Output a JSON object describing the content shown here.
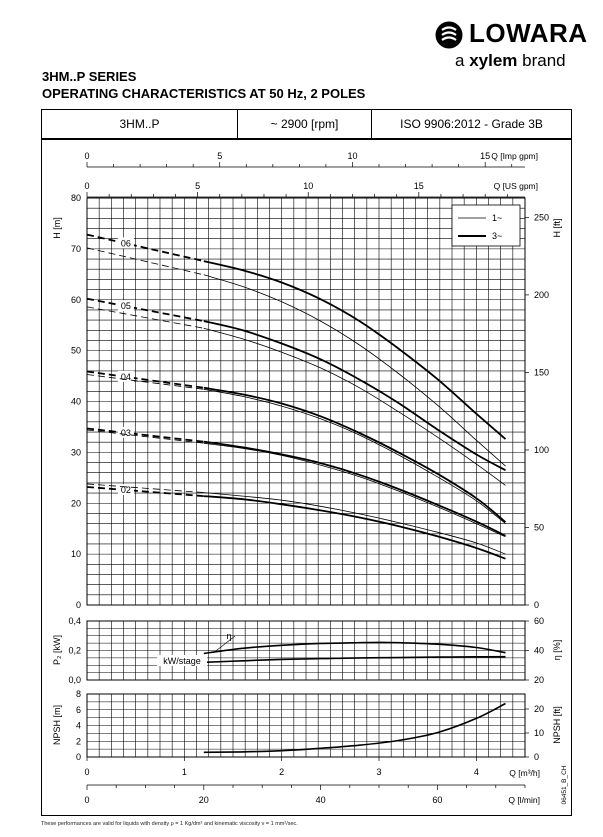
{
  "brand": {
    "name": "LOWARA",
    "tagline_prefix": "a",
    "tagline_brand": "xylem",
    "tagline_suffix": "brand"
  },
  "header": {
    "series": "3HM..P SERIES",
    "title": "OPERATING CHARACTERISTICS AT 50 Hz, 2 POLES"
  },
  "info_box": {
    "model": "3HM..P",
    "speed": "~ 2900 [rpm]",
    "standard": "ISO 9906:2012 - Grade 3B"
  },
  "footnote": "These performances are valid for liquids with density ρ = 1 Kg/dm³ and kinematic viscosity ν = 1 mm²/sec.",
  "doc_code": "06451_B_CH",
  "chart_data": [
    {
      "type": "line",
      "panel": "head",
      "ylabel": "H [m]",
      "ylim": [
        0,
        80
      ],
      "yticks": [
        0,
        10,
        20,
        30,
        40,
        50,
        60,
        70,
        80
      ],
      "y2label": "H [ft]",
      "y2lim": [
        0,
        262.5
      ],
      "y2ticks": [
        0,
        50,
        100,
        150,
        200,
        250
      ],
      "xlim": [
        0,
        4.5
      ],
      "top_axes": [
        {
          "label": "Q [Imp gpm]",
          "ticks": [
            0,
            5,
            10,
            15
          ],
          "lim": [
            0,
            16.5
          ]
        },
        {
          "label": "Q [US gpm]",
          "ticks": [
            0,
            5,
            10,
            15
          ],
          "lim": [
            0,
            19.8
          ]
        }
      ],
      "grid": true,
      "legend": {
        "position": "top-right",
        "entries": [
          {
            "label": "1~",
            "style": "thin"
          },
          {
            "label": "3~",
            "style": "thick"
          }
        ]
      },
      "series": [
        {
          "name": "06",
          "style": "thick",
          "x": [
            1.2,
            1.6,
            2.0,
            2.4,
            2.8,
            3.2,
            3.6,
            4.0,
            4.3
          ],
          "y": [
            67.6,
            65.8,
            63.4,
            60.1,
            55.8,
            50.4,
            44.4,
            37.6,
            32.6
          ],
          "lead_in": [
            [
              0,
              72.8
            ],
            [
              1.2,
              67.6
            ]
          ]
        },
        {
          "name": "06",
          "style": "thin",
          "x": [
            1.2,
            1.6,
            2.0,
            2.4,
            2.8,
            3.2,
            3.6,
            4.0,
            4.3
          ],
          "y": [
            64.9,
            62.6,
            59.6,
            55.8,
            51.1,
            45.5,
            39.3,
            32.4,
            27.3
          ],
          "lead_in": [
            [
              0,
              70.2
            ],
            [
              1.2,
              64.9
            ]
          ]
        },
        {
          "name": "05",
          "style": "thick",
          "x": [
            1.2,
            1.6,
            2.0,
            2.4,
            2.8,
            3.2,
            3.6,
            4.0,
            4.3
          ],
          "y": [
            55.8,
            54.0,
            51.4,
            48.3,
            44.3,
            39.7,
            34.5,
            29.6,
            26.5
          ],
          "lead_in": [
            [
              0,
              60.2
            ],
            [
              1.2,
              55.8
            ]
          ]
        },
        {
          "name": "05",
          "style": "thin",
          "x": [
            1.2,
            1.6,
            2.0,
            2.4,
            2.8,
            3.2,
            3.6,
            4.0,
            4.3
          ],
          "y": [
            54.4,
            52.3,
            49.7,
            46.6,
            42.7,
            38.0,
            33.0,
            27.7,
            23.5
          ],
          "lead_in": [
            [
              0,
              58.6
            ],
            [
              1.2,
              54.4
            ]
          ]
        },
        {
          "name": "04",
          "style": "thick",
          "x": [
            1.2,
            1.6,
            2.0,
            2.4,
            2.8,
            3.2,
            3.6,
            4.0,
            4.3
          ],
          "y": [
            42.7,
            41.4,
            39.6,
            37.1,
            33.8,
            30.0,
            25.8,
            21.0,
            16.3
          ],
          "lead_in": [
            [
              0,
              45.9
            ],
            [
              1.2,
              42.7
            ]
          ]
        },
        {
          "name": "04",
          "style": "thin",
          "x": [
            1.2,
            1.6,
            2.0,
            2.4,
            2.8,
            3.2,
            3.6,
            4.0,
            4.3
          ],
          "y": [
            42.4,
            41.0,
            39.1,
            36.6,
            33.4,
            29.5,
            25.2,
            20.5,
            16.0
          ],
          "lead_in": [
            [
              0,
              45.3
            ],
            [
              1.2,
              42.4
            ]
          ]
        },
        {
          "name": "03",
          "style": "thick",
          "x": [
            1.2,
            1.6,
            2.0,
            2.4,
            2.8,
            3.2,
            3.6,
            4.0,
            4.3
          ],
          "y": [
            32.1,
            31.0,
            29.6,
            27.9,
            25.6,
            22.8,
            19.7,
            16.4,
            13.6
          ],
          "lead_in": [
            [
              0,
              34.7
            ],
            [
              1.2,
              32.1
            ]
          ]
        },
        {
          "name": "03",
          "style": "thin",
          "x": [
            1.2,
            1.6,
            2.0,
            2.4,
            2.8,
            3.2,
            3.6,
            4.0,
            4.3
          ],
          "y": [
            31.8,
            30.8,
            29.4,
            27.5,
            25.2,
            22.4,
            19.3,
            16.0,
            13.4
          ],
          "lead_in": [
            [
              0,
              34.4
            ],
            [
              1.2,
              31.8
            ]
          ]
        },
        {
          "name": "02",
          "style": "thick",
          "x": [
            1.2,
            1.6,
            2.0,
            2.4,
            2.8,
            3.2,
            3.6,
            4.0,
            4.3
          ],
          "y": [
            21.4,
            20.8,
            19.8,
            18.6,
            17.2,
            15.5,
            13.5,
            11.2,
            9.1
          ],
          "lead_in": [
            [
              0,
              23.2
            ],
            [
              1.2,
              21.4
            ]
          ]
        },
        {
          "name": "02",
          "style": "thin",
          "x": [
            1.2,
            1.6,
            2.0,
            2.4,
            2.8,
            3.2,
            3.6,
            4.0,
            4.3
          ],
          "y": [
            22.1,
            21.4,
            20.6,
            19.4,
            17.9,
            16.2,
            14.3,
            12.2,
            10.0
          ],
          "lead_in": [
            [
              0,
              23.8
            ],
            [
              1.2,
              22.1
            ]
          ]
        }
      ]
    },
    {
      "type": "line",
      "panel": "power-efficiency",
      "ylabel": "P₂ [kW]",
      "ylim": [
        0,
        0.4
      ],
      "yticks": [
        "0,0",
        "0,2",
        "0,4"
      ],
      "y2label": "η [%]",
      "y2lim": [
        20,
        60
      ],
      "y2ticks": [
        20,
        40,
        60
      ],
      "grid": true,
      "annotations": [
        "η",
        "kW/stage"
      ],
      "series": [
        {
          "name": "η",
          "axis": "right",
          "x": [
            1.2,
            1.6,
            2.0,
            2.4,
            2.8,
            3.0,
            3.2,
            3.6,
            4.0,
            4.3
          ],
          "y": [
            38.0,
            41.5,
            43.5,
            44.8,
            45.3,
            45.5,
            45.3,
            44.3,
            42.0,
            38.5
          ]
        },
        {
          "name": "kW/stage",
          "axis": "left",
          "x": [
            1.2,
            1.6,
            2.0,
            2.4,
            2.8,
            3.2,
            3.6,
            4.0,
            4.3
          ],
          "y": [
            0.12,
            0.13,
            0.14,
            0.145,
            0.15,
            0.152,
            0.155,
            0.157,
            0.158
          ]
        }
      ]
    },
    {
      "type": "line",
      "panel": "npsh",
      "ylabel": "NPSH [m]",
      "ylim": [
        0,
        8
      ],
      "yticks": [
        0,
        2,
        4,
        6,
        8
      ],
      "y2label": "NPSH [ft]",
      "y2lim": [
        0,
        26.25
      ],
      "y2ticks": [
        0,
        10,
        20
      ],
      "xlabel": "Q [m³/h]",
      "xlim": [
        0,
        4.5
      ],
      "xticks": [
        0,
        1,
        2,
        3,
        4
      ],
      "bottom_axis": {
        "label": "Q [l/min]",
        "ticks": [
          0,
          20,
          40,
          60
        ],
        "lim": [
          0,
          75
        ]
      },
      "grid": true,
      "series": [
        {
          "name": "NPSH",
          "x": [
            1.2,
            1.6,
            2.0,
            2.4,
            2.8,
            3.2,
            3.6,
            4.0,
            4.3
          ],
          "y": [
            0.6,
            0.65,
            0.8,
            1.1,
            1.5,
            2.1,
            3.1,
            4.9,
            6.8
          ]
        }
      ]
    }
  ]
}
